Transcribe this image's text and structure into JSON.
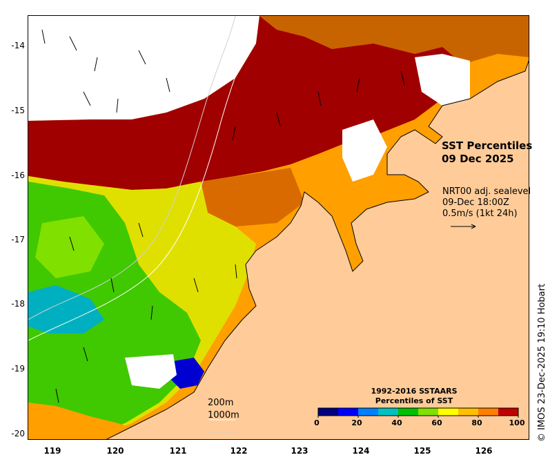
{
  "map": {
    "title_line1": "SST Percentiles",
    "title_line2": "09 Dec 2025",
    "vector_product": "NRT00 adj. sealevel",
    "vector_time": "09-Dec 18:00Z",
    "vector_scale": "0.5m/s (1kt 24h)",
    "contour_200": "200m",
    "contour_1000": "1000m",
    "credit": "© IMOS 23-Dec-2025 19:10 Hobart"
  },
  "axes": {
    "lat_labels": [
      "-14",
      "-15",
      "-16",
      "-17",
      "-18",
      "-19",
      "-20"
    ],
    "lon_labels": [
      "119",
      "120",
      "121",
      "122",
      "123",
      "124",
      "125",
      "126"
    ]
  },
  "colorbar": {
    "title_line1": "1992-2016 SSTAARS",
    "title_line2": "Percentiles of SST",
    "ticks": [
      "0",
      "20",
      "40",
      "60",
      "80",
      "100"
    ],
    "colors": [
      "#00007f",
      "#0000ff",
      "#0080ff",
      "#00c0c0",
      "#00bf00",
      "#80e000",
      "#ffff00",
      "#ffc000",
      "#ff8000",
      "#c00000"
    ]
  },
  "colors": {
    "land": "#ffcc99",
    "cloud": "#ffffff",
    "very_high": "#a00000"
  }
}
